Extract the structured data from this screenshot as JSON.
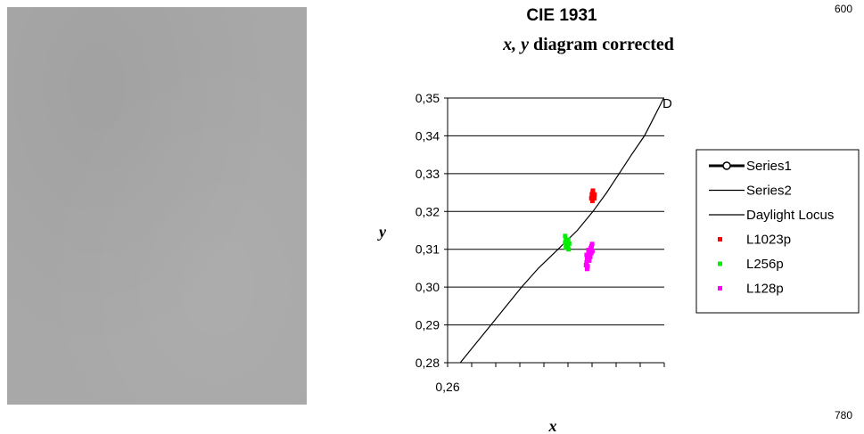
{
  "image_panel": {
    "description_label": ""
  },
  "corner_labels": {
    "top": "600",
    "bottom": "780"
  },
  "chart_data": {
    "type": "scatter",
    "title": "CIE 1931",
    "subtitle_italic": "x, y",
    "subtitle_rest": "diagram corrected",
    "xlabel": "x",
    "ylabel": "y",
    "xlim": [
      0.26,
      0.342
    ],
    "ylim": [
      0.28,
      0.35
    ],
    "y_ticks": [
      "0,35",
      "0,34",
      "0,33",
      "0,32",
      "0,31",
      "0,30",
      "0,29",
      "0,28"
    ],
    "x_tick_label": "0,26",
    "grid": "horizontal",
    "legend_position": "right",
    "point_label": "D",
    "series": [
      {
        "name": "Series1",
        "style": "line-marker",
        "color": "#000000",
        "points": []
      },
      {
        "name": "Series2",
        "style": "line",
        "color": "#000000",
        "points": []
      },
      {
        "name": "Daylight Locus",
        "style": "line",
        "color": "#000000",
        "points": [
          [
            0.2648,
            0.28
          ],
          [
            0.2706,
            0.285
          ],
          [
            0.2764,
            0.29
          ],
          [
            0.2822,
            0.295
          ],
          [
            0.288,
            0.3
          ],
          [
            0.2944,
            0.305
          ],
          [
            0.3018,
            0.31
          ],
          [
            0.3091,
            0.315
          ],
          [
            0.315,
            0.32
          ],
          [
            0.3202,
            0.325
          ],
          [
            0.3249,
            0.33
          ],
          [
            0.3296,
            0.335
          ],
          [
            0.3345,
            0.34
          ],
          [
            0.3382,
            0.345
          ],
          [
            0.3418,
            0.35
          ]
        ]
      },
      {
        "name": "L1023p",
        "style": "marker",
        "color": "#ff0000",
        "points": [
          [
            0.3144,
            0.3235
          ],
          [
            0.3146,
            0.3245
          ],
          [
            0.3149,
            0.325
          ],
          [
            0.3152,
            0.324
          ],
          [
            0.3156,
            0.3245
          ],
          [
            0.3148,
            0.3228
          ],
          [
            0.3155,
            0.3235
          ],
          [
            0.315,
            0.3255
          ]
        ]
      },
      {
        "name": "L256p",
        "style": "marker",
        "color": "#00ee00",
        "points": [
          [
            0.3045,
            0.3135
          ],
          [
            0.3048,
            0.3125
          ],
          [
            0.305,
            0.3115
          ],
          [
            0.3052,
            0.311
          ],
          [
            0.3055,
            0.3105
          ],
          [
            0.3058,
            0.31
          ],
          [
            0.306,
            0.3115
          ],
          [
            0.3045,
            0.3118
          ],
          [
            0.3048,
            0.3105
          ],
          [
            0.3056,
            0.3125
          ]
        ]
      },
      {
        "name": "L128p",
        "style": "marker",
        "color": "#ff00ff",
        "points": [
          [
            0.3124,
            0.3058
          ],
          [
            0.3126,
            0.3065
          ],
          [
            0.3128,
            0.3075
          ],
          [
            0.313,
            0.3082
          ],
          [
            0.3134,
            0.309
          ],
          [
            0.3138,
            0.3098
          ],
          [
            0.3142,
            0.3104
          ],
          [
            0.3145,
            0.3108
          ],
          [
            0.3147,
            0.3114
          ],
          [
            0.3128,
            0.3048
          ],
          [
            0.313,
            0.3055
          ],
          [
            0.3136,
            0.307
          ],
          [
            0.314,
            0.308
          ],
          [
            0.3144,
            0.309
          ],
          [
            0.3133,
            0.3098
          ],
          [
            0.3148,
            0.3095
          ],
          [
            0.3126,
            0.3085
          ]
        ]
      }
    ]
  }
}
